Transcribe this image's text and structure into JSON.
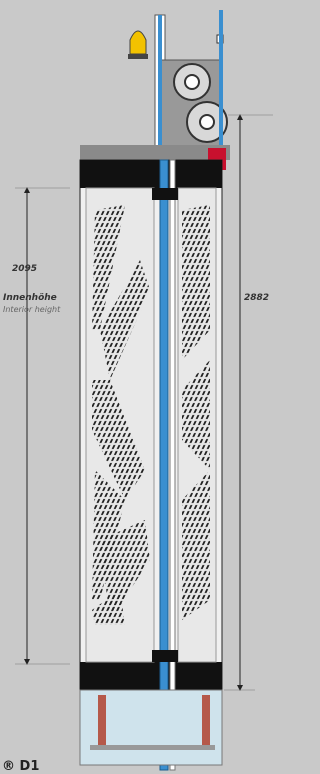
{
  "dimensions": {
    "interior": {
      "value": "2095",
      "label": "Innenhöhe",
      "label_en": "Interior height"
    },
    "total": {
      "value": "2882"
    }
  },
  "footer": {
    "model": "® D1"
  }
}
